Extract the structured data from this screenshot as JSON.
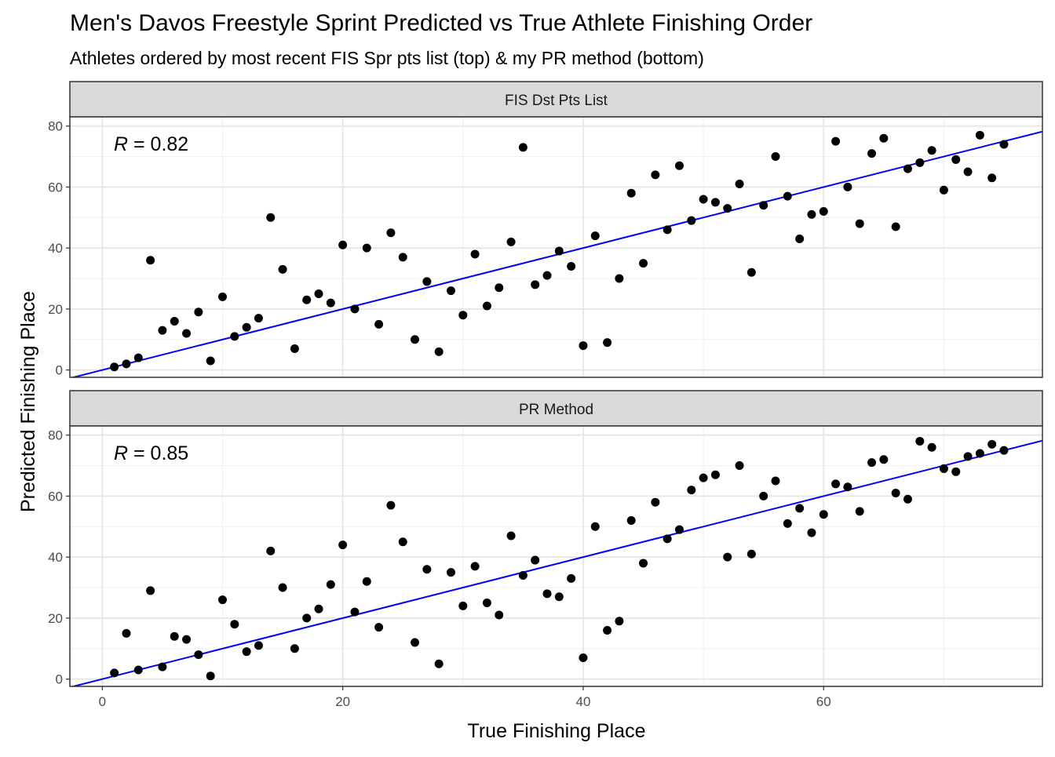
{
  "title": "Men's Davos Freestyle Sprint Predicted vs True Athlete Finishing Order",
  "subtitle": "Athletes ordered by most recent FIS Spr pts list (top) & my PR method (bottom)",
  "chart_data": {
    "type": "scatter",
    "xlabel": "True Finishing Place",
    "ylabel": "Predicted Finishing Place",
    "xlim": [
      -2.7,
      78.2
    ],
    "ylim": [
      -2.4,
      83
    ],
    "x_ticks": [
      "0",
      "20",
      "40",
      "60"
    ],
    "y_ticks": [
      "0",
      "20",
      "40",
      "60",
      "80"
    ],
    "grid": true,
    "colors": {
      "points": "#000000",
      "fit_line": "#0000ff",
      "strip": "#d9d9d9"
    },
    "panels": [
      {
        "name": "FIS Dst Pts List",
        "r_value": "= 0.82",
        "fit": {
          "intercept": 0,
          "slope": 1
        },
        "x": [
          1,
          2,
          3,
          4,
          5,
          6,
          7,
          8,
          9,
          10,
          11,
          12,
          13,
          14,
          15,
          16,
          17,
          18,
          19,
          20,
          21,
          22,
          23,
          24,
          25,
          26,
          27,
          28,
          29,
          30,
          31,
          32,
          33,
          34,
          35,
          36,
          37,
          38,
          39,
          40,
          41,
          42,
          43,
          44,
          45,
          46,
          47,
          48,
          49,
          50,
          51,
          52,
          53,
          54,
          55,
          56,
          57,
          58,
          59,
          60,
          61,
          62,
          63,
          64,
          65,
          66,
          67,
          68,
          69,
          70,
          71,
          72,
          73,
          74,
          75
        ],
        "y": [
          1,
          2,
          4,
          36,
          13,
          16,
          12,
          19,
          3,
          24,
          11,
          14,
          17,
          50,
          33,
          7,
          23,
          25,
          22,
          41,
          20,
          40,
          15,
          45,
          37,
          10,
          29,
          6,
          26,
          18,
          38,
          21,
          27,
          42,
          73,
          28,
          31,
          39,
          34,
          8,
          44,
          9,
          30,
          58,
          35,
          64,
          46,
          67,
          49,
          56,
          55,
          53,
          61,
          32,
          54,
          70,
          57,
          43,
          51,
          52,
          75,
          60,
          48,
          71,
          76,
          47,
          66,
          68,
          72,
          59,
          69,
          65,
          77,
          63,
          74
        ]
      },
      {
        "name": "PR Method",
        "r_value": "= 0.85",
        "fit": {
          "intercept": 0,
          "slope": 1
        },
        "x": [
          1,
          2,
          3,
          4,
          5,
          6,
          7,
          8,
          9,
          10,
          11,
          12,
          13,
          14,
          15,
          16,
          17,
          18,
          19,
          20,
          21,
          22,
          23,
          24,
          25,
          26,
          27,
          28,
          29,
          30,
          31,
          32,
          33,
          34,
          35,
          36,
          37,
          38,
          39,
          40,
          41,
          42,
          43,
          44,
          45,
          46,
          47,
          48,
          49,
          50,
          51,
          52,
          53,
          54,
          55,
          56,
          57,
          58,
          59,
          60,
          61,
          62,
          63,
          64,
          65,
          66,
          67,
          68,
          69,
          70,
          71,
          72,
          73,
          74,
          75
        ],
        "y": [
          2,
          15,
          3,
          29,
          4,
          14,
          13,
          8,
          1,
          26,
          18,
          9,
          11,
          42,
          30,
          10,
          20,
          23,
          31,
          44,
          22,
          32,
          17,
          57,
          45,
          12,
          36,
          5,
          35,
          24,
          37,
          25,
          21,
          47,
          34,
          39,
          28,
          27,
          33,
          7,
          50,
          16,
          19,
          52,
          38,
          58,
          46,
          49,
          62,
          66,
          67,
          40,
          70,
          41,
          60,
          65,
          51,
          56,
          48,
          54,
          64,
          63,
          55,
          71,
          72,
          61,
          59,
          78,
          76,
          69,
          68,
          73,
          74,
          77,
          75
        ]
      }
    ]
  }
}
